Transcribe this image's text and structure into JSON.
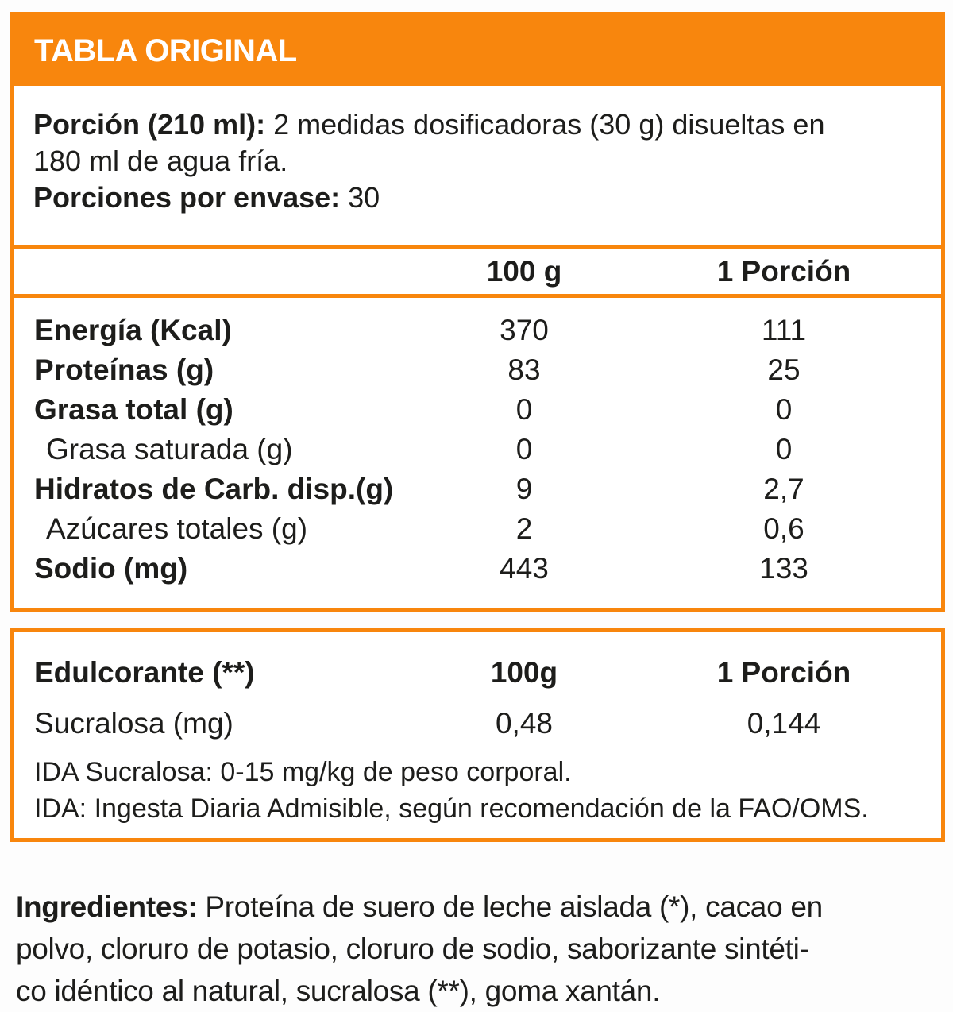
{
  "colors": {
    "accent": "#f8860d",
    "text": "#1d1d1b",
    "header_text": "#ffffff"
  },
  "title": "TABLA ORIGINAL",
  "serving": {
    "porcion_label": "Porción (210 ml):",
    "porcion_line1": "2 medidas dosificadoras (30 g) disueltas en",
    "porcion_line2": "180 ml de agua fría.",
    "envase_label": "Porciones por envase:",
    "envase_value": "30"
  },
  "nutrition_table": {
    "col_100g": "100 g",
    "col_porcion": "1 Porción",
    "rows": [
      {
        "label": "Energía (Kcal)",
        "per_100g": "370",
        "per_porcion": "111"
      },
      {
        "label": "Proteínas (g)",
        "per_100g": "83",
        "per_porcion": "25"
      },
      {
        "label": "Grasa total (g)",
        "per_100g": "0",
        "per_porcion": "0"
      },
      {
        "label": "Grasa saturada (g)",
        "per_100g": "0",
        "per_porcion": "0"
      },
      {
        "label": "Hidratos de Carb. disp.(g)",
        "per_100g": "9",
        "per_porcion": "2,7"
      },
      {
        "label": "Azúcares totales (g)",
        "per_100g": "2",
        "per_porcion": "0,6"
      },
      {
        "label": "Sodio (mg)",
        "per_100g": "443",
        "per_porcion": "133"
      }
    ]
  },
  "sweetener_table": {
    "header_label": "Edulcorante (**)",
    "col_100g": "100g",
    "col_porcion": "1 Porción",
    "row": {
      "label": "Sucralosa (mg)",
      "per_100g": "0,48",
      "per_porcion": "0,144"
    },
    "ida_line1": "IDA Sucralosa: 0-15 mg/kg de peso corporal.",
    "ida_line2": "IDA: Ingesta Diaria Admisible, según recomendación de la FAO/OMS."
  },
  "ingredients": {
    "label": "Ingredientes:",
    "line1": "Proteína de suero de leche aislada (*), cacao en",
    "line2": "polvo, cloruro de potasio, cloruro de sodio, saborizante sintéti-",
    "line3": "co idéntico al natural, sucralosa (**), goma xantán."
  }
}
